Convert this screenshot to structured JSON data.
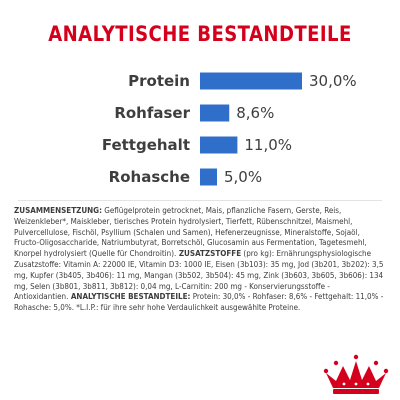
{
  "heading": "ANALYTISCHE BESTANDTEILE",
  "chart_data": {
    "type": "bar",
    "orientation": "horizontal",
    "categories": [
      "Protein",
      "Rohfaser",
      "Fettgehalt",
      "Rohasche"
    ],
    "values": [
      30.0,
      8.6,
      11.0,
      5.0
    ],
    "value_labels": [
      "30,0%",
      "8,6%",
      "11,0%",
      "5,0%"
    ],
    "unit": "%",
    "title": "ANALYTISCHE BESTANDTEILE",
    "xlabel": "",
    "ylabel": "",
    "xlim": [
      0,
      30
    ],
    "grid": false,
    "colors": {
      "bar": "#2f6fc9",
      "text": "#3e3e3e"
    }
  },
  "composition": {
    "label_zusammensetzung": "ZUSAMMENSETZUNG:",
    "text_zusammensetzung": " Geflügelprotein getrocknet, Mais, pflanzliche Fasern, Gerste, Reis, Weizenkleber*, Maiskleber, tierisches Protein hydrolysiert, Tierfett, Rübenschnitzel, Maismehl, Pulvercellulose, Fischöl, Psyllium (Schalen und Samen), Hefenerzeugnisse, Mineralstoffe, Sojaöl, Fructo-Oligosaccharide, Natriumbutyrat, Borretschöl, Glucosamin aus Fermentation, Tagetesmehl, Knorpel hydrolysiert (Quelle für Chondroitin).",
    "label_zusatzstoffe": " ZUSATZSTOFFE",
    "text_zusatzstoffe": " (pro kg): Ernährungsphysiologische Zusatzstoffe: Vitamin A: 22000 IE, Vitamin D3: 1000 IE, Eisen (3b103): 35 mg, Jod (3b201, 3b202): 3,5 mg, Kupfer (3b405, 3b406): 11 mg, Mangan (3b502, 3b504): 45 mg, Zink (3b603, 3b605, 3b606): 134 mg, Selen (3b801, 3b811, 3b812): 0,04 mg, L-Carnitin: 200 mg - Konservierungsstoffe - Antioxidantien.",
    "label_analytische": " ANALYTISCHE BESTANDTEILE:",
    "text_analytische": " Protein: 30,0% - Rohfaser: 8,6% - Fettgehalt: 11,0% - Rohasche: 5,0%. *L.I.P.: für ihre sehr hohe Verdaulichkeit ausgewählte Proteine."
  },
  "logo": {
    "name": "royal-canin-crown-logo",
    "color": "#d5001c"
  }
}
